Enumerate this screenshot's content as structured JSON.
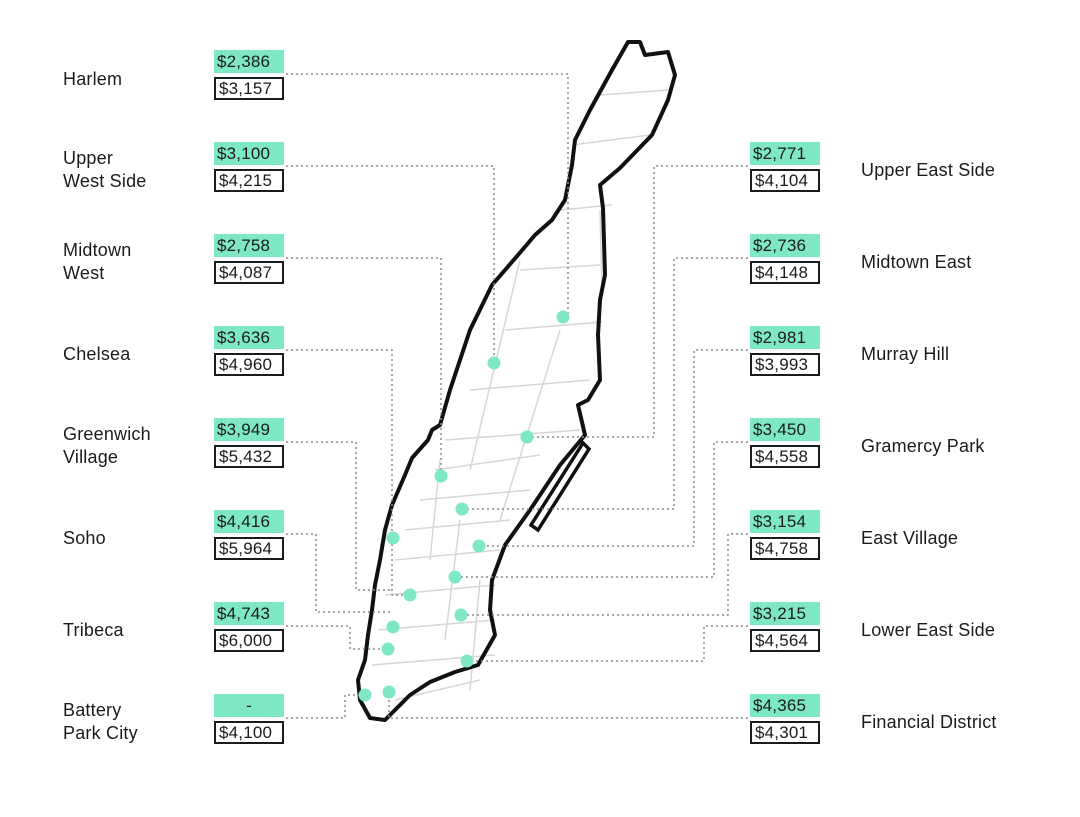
{
  "colors": {
    "accent": "#7ee8c6",
    "text": "#1b1b1b",
    "line": "#8a8a8a",
    "outline": "#111111",
    "interior": "#d6d6d6",
    "background": "#ffffff"
  },
  "icons": {
    "marker": "teal-circle-marker"
  },
  "map": {
    "subject": "manhattan-outline"
  },
  "neighborhoods": {
    "harlem": {
      "name": "Harlem",
      "rent_top": "$2,386",
      "rent_bottom": "$3,157"
    },
    "upper_west_side": {
      "name": "Upper\nWest Side",
      "rent_top": "$3,100",
      "rent_bottom": "$4,215"
    },
    "midtown_west": {
      "name": "Midtown\nWest",
      "rent_top": "$2,758",
      "rent_bottom": "$4,087"
    },
    "chelsea": {
      "name": "Chelsea",
      "rent_top": "$3,636",
      "rent_bottom": "$4,960"
    },
    "greenwich_village": {
      "name": "Greenwich\nVillage",
      "rent_top": "$3,949",
      "rent_bottom": "$5,432"
    },
    "soho": {
      "name": "Soho",
      "rent_top": "$4,416",
      "rent_bottom": "$5,964"
    },
    "tribeca": {
      "name": "Tribeca",
      "rent_top": "$4,743",
      "rent_bottom": "$6,000"
    },
    "battery_park_city": {
      "name": "Battery\nPark City",
      "rent_top": "-",
      "rent_bottom": "$4,100"
    },
    "upper_east_side": {
      "name": "Upper East Side",
      "rent_top": "$2,771",
      "rent_bottom": "$4,104"
    },
    "midtown_east": {
      "name": "Midtown East",
      "rent_top": "$2,736",
      "rent_bottom": "$4,148"
    },
    "murray_hill": {
      "name": "Murray Hill",
      "rent_top": "$2,981",
      "rent_bottom": "$3,993"
    },
    "gramercy_park": {
      "name": "Gramercy Park",
      "rent_top": "$3,450",
      "rent_bottom": "$4,558"
    },
    "east_village": {
      "name": "East Village",
      "rent_top": "$3,154",
      "rent_bottom": "$4,758"
    },
    "lower_east_side": {
      "name": "Lower East Side",
      "rent_top": "$3,215",
      "rent_bottom": "$4,564"
    },
    "financial_district": {
      "name": "Financial District",
      "rent_top": "$4,365",
      "rent_bottom": "$4,301"
    }
  }
}
